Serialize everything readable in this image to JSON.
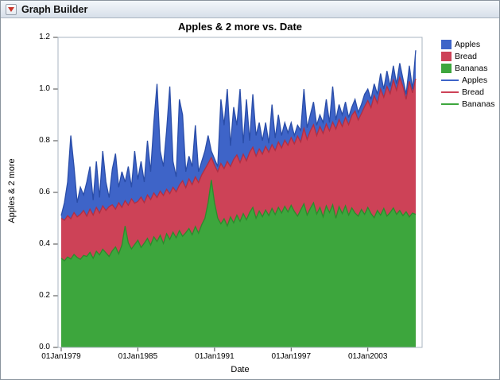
{
  "window": {
    "title": "Graph Builder"
  },
  "chart_data": {
    "type": "area",
    "stacked": true,
    "title": "Apples & 2 more vs. Date",
    "xlabel": "Date",
    "ylabel": "Apples & 2 more",
    "xlim": [
      1978.75,
      2007.25
    ],
    "ylim": [
      0,
      1.2
    ],
    "x_start_year": 1979.0,
    "x_step_years": 0.25,
    "y_ticks": [
      "0.0",
      "0.2",
      "0.4",
      "0.6",
      "0.8",
      "1.0",
      "1.2"
    ],
    "x_ticks": [
      {
        "year": 1979,
        "label": "01Jan1979"
      },
      {
        "year": 1985,
        "label": "01Jan1985"
      },
      {
        "year": 1991,
        "label": "01Jan1991"
      },
      {
        "year": 1997,
        "label": "01Jan1997"
      },
      {
        "year": 2003,
        "label": "01Jan2003"
      }
    ],
    "series": [
      {
        "name": "Bananas",
        "color": "#3DA63D",
        "line_color": "#2C8C2C",
        "cum_top": [
          0.345,
          0.335,
          0.35,
          0.342,
          0.36,
          0.348,
          0.341,
          0.356,
          0.352,
          0.368,
          0.345,
          0.372,
          0.358,
          0.38,
          0.366,
          0.352,
          0.374,
          0.389,
          0.362,
          0.396,
          0.47,
          0.405,
          0.381,
          0.398,
          0.415,
          0.387,
          0.403,
          0.422,
          0.396,
          0.428,
          0.41,
          0.434,
          0.402,
          0.44,
          0.418,
          0.446,
          0.424,
          0.452,
          0.43,
          0.444,
          0.46,
          0.436,
          0.468,
          0.442,
          0.475,
          0.5,
          0.56,
          0.648,
          0.56,
          0.5,
          0.478,
          0.498,
          0.47,
          0.505,
          0.482,
          0.512,
          0.488,
          0.518,
          0.494,
          0.522,
          0.542,
          0.5,
          0.528,
          0.506,
          0.532,
          0.51,
          0.538,
          0.514,
          0.542,
          0.52,
          0.546,
          0.524,
          0.55,
          0.526,
          0.508,
          0.532,
          0.556,
          0.512,
          0.538,
          0.56,
          0.516,
          0.542,
          0.505,
          0.548,
          0.522,
          0.552,
          0.5,
          0.545,
          0.518,
          0.548,
          0.512,
          0.54,
          0.52,
          0.508,
          0.534,
          0.515,
          0.542,
          0.518,
          0.502,
          0.53,
          0.512,
          0.538,
          0.508,
          0.522,
          0.54,
          0.515,
          0.53,
          0.51,
          0.525,
          0.505,
          0.52,
          0.515
        ]
      },
      {
        "name": "Bread",
        "color": "#CD4257",
        "line_color": "#B02F44",
        "cum_top": [
          0.5,
          0.492,
          0.51,
          0.498,
          0.522,
          0.505,
          0.515,
          0.53,
          0.508,
          0.535,
          0.512,
          0.542,
          0.52,
          0.548,
          0.53,
          0.545,
          0.552,
          0.535,
          0.56,
          0.542,
          0.568,
          0.55,
          0.575,
          0.558,
          0.565,
          0.582,
          0.56,
          0.59,
          0.572,
          0.598,
          0.58,
          0.605,
          0.588,
          0.612,
          0.595,
          0.62,
          0.602,
          0.628,
          0.645,
          0.618,
          0.652,
          0.63,
          0.66,
          0.638,
          0.668,
          0.69,
          0.712,
          0.735,
          0.705,
          0.68,
          0.712,
          0.692,
          0.72,
          0.7,
          0.728,
          0.745,
          0.715,
          0.748,
          0.722,
          0.755,
          0.775,
          0.74,
          0.768,
          0.748,
          0.778,
          0.755,
          0.785,
          0.762,
          0.795,
          0.772,
          0.802,
          0.782,
          0.812,
          0.788,
          0.818,
          0.795,
          0.848,
          0.805,
          0.838,
          0.862,
          0.82,
          0.855,
          0.828,
          0.865,
          0.838,
          0.872,
          0.845,
          0.882,
          0.855,
          0.89,
          0.862,
          0.898,
          0.915,
          0.88,
          0.905,
          0.932,
          0.955,
          0.928,
          0.975,
          0.945,
          1.0,
          0.968,
          1.01,
          0.982,
          1.035,
          0.995,
          1.045,
          1.01,
          0.96,
          1.03,
          0.985,
          1.04
        ]
      },
      {
        "name": "Apples",
        "color": "#3E64C8",
        "line_color": "#2A4DA8",
        "cum_top": [
          0.51,
          0.56,
          0.64,
          0.82,
          0.7,
          0.56,
          0.62,
          0.59,
          0.64,
          0.7,
          0.57,
          0.72,
          0.58,
          0.76,
          0.64,
          0.58,
          0.69,
          0.75,
          0.62,
          0.68,
          0.64,
          0.7,
          0.62,
          0.76,
          0.65,
          0.72,
          0.64,
          0.8,
          0.68,
          0.87,
          1.02,
          0.76,
          0.7,
          0.84,
          1.01,
          0.72,
          0.66,
          0.96,
          0.9,
          0.68,
          0.74,
          0.7,
          0.86,
          0.68,
          0.72,
          0.76,
          0.82,
          0.76,
          0.73,
          0.7,
          0.96,
          0.86,
          1.0,
          0.78,
          0.93,
          0.86,
          1.0,
          0.79,
          0.96,
          0.8,
          0.98,
          0.82,
          0.87,
          0.8,
          0.87,
          0.79,
          0.94,
          0.81,
          0.9,
          0.82,
          0.87,
          0.83,
          0.87,
          0.82,
          0.86,
          0.84,
          1.0,
          0.85,
          0.9,
          0.95,
          0.86,
          0.9,
          0.87,
          0.96,
          0.87,
          1.01,
          0.88,
          0.94,
          0.9,
          0.95,
          0.89,
          0.93,
          0.96,
          0.91,
          0.94,
          0.98,
          1.0,
          0.96,
          1.02,
          0.98,
          1.06,
          1.0,
          1.07,
          1.01,
          1.09,
          1.02,
          1.1,
          1.04,
          0.98,
          1.09,
          1.0,
          1.15
        ]
      }
    ],
    "legend": [
      {
        "label": "Apples",
        "swatch": "area",
        "color": "#3E64C8"
      },
      {
        "label": "Bread",
        "swatch": "area",
        "color": "#CD4257"
      },
      {
        "label": "Bananas",
        "swatch": "area",
        "color": "#3DA63D"
      },
      {
        "label": "Apples",
        "swatch": "line",
        "color": "#3E64C8"
      },
      {
        "label": "Bread",
        "swatch": "line",
        "color": "#CD4257"
      },
      {
        "label": "Bananas",
        "swatch": "line",
        "color": "#3DA63D"
      }
    ]
  }
}
